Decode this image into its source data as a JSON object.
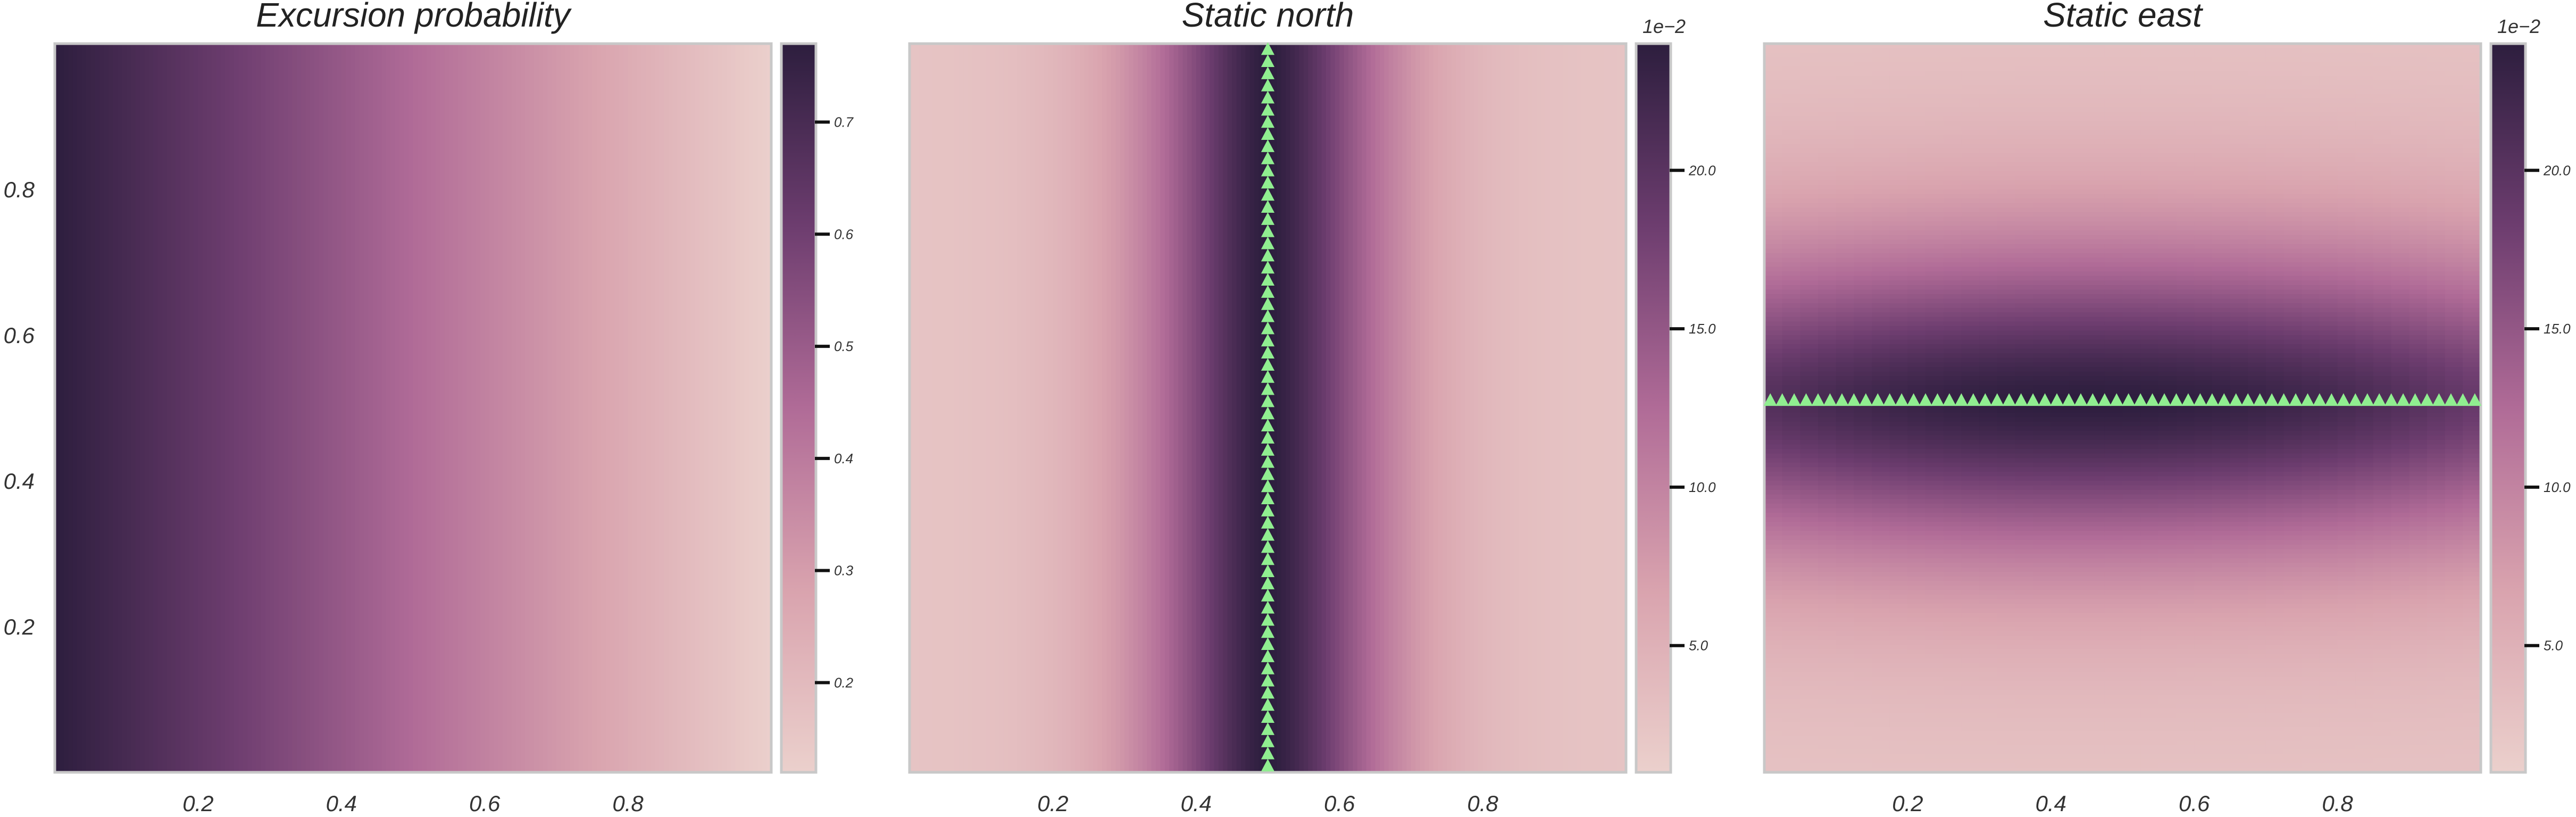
{
  "chart_data": [
    {
      "type": "heatmap",
      "title": "Excursion probability",
      "xlabel": "",
      "ylabel": "",
      "xlim": [
        0,
        1
      ],
      "ylim": [
        0,
        1
      ],
      "xticks": [
        "0.2",
        "0.4",
        "0.6",
        "0.8"
      ],
      "yticks": [
        "0.2",
        "0.4",
        "0.6",
        "0.8"
      ],
      "colorbar": {
        "range": [
          0.12,
          0.77
        ],
        "ticks": [
          "0.2",
          "0.3",
          "0.4",
          "0.5",
          "0.6",
          "0.7"
        ],
        "scale_label": ""
      },
      "field": {
        "kind": "linear_x",
        "value_at_x0": 0.77,
        "value_at_x1": 0.12
      },
      "markers": []
    },
    {
      "type": "heatmap",
      "title": "Static north",
      "xlabel": "",
      "ylabel": "",
      "xlim": [
        0,
        1
      ],
      "ylim": [
        0,
        1
      ],
      "xticks": [
        "0.2",
        "0.4",
        "0.6",
        "0.8"
      ],
      "yticks": [],
      "colorbar": {
        "range": [
          1.0,
          24.0
        ],
        "ticks": [
          "5.0",
          "10.0",
          "15.0",
          "20.0"
        ],
        "scale_label": "1e−2"
      },
      "field": {
        "kind": "vertical_band",
        "center_x": 0.5,
        "peak": 24.0,
        "edge": 2.5
      },
      "markers": {
        "shape": "triangle",
        "color": "#90ee90",
        "line": "vertical",
        "x": 0.5,
        "count": 60
      }
    },
    {
      "type": "heatmap",
      "title": "Static east",
      "xlabel": "",
      "ylabel": "",
      "xlim": [
        0,
        1
      ],
      "ylim": [
        0,
        1
      ],
      "xticks": [
        "0.2",
        "0.4",
        "0.6",
        "0.8"
      ],
      "yticks": [],
      "colorbar": {
        "range": [
          1.0,
          24.0
        ],
        "ticks": [
          "5.0",
          "10.0",
          "15.0",
          "20.0"
        ],
        "scale_label": "1e−2"
      },
      "field": {
        "kind": "horizontal_band",
        "center_y": 0.51,
        "peak": 24.0,
        "edge": 2.5
      },
      "markers": {
        "shape": "triangle",
        "color": "#90ee90",
        "line": "horizontal",
        "y": 0.51,
        "count": 60
      }
    }
  ],
  "colors": {
    "cmap_low": "#ebd0cc",
    "cmap_mid": "#b06b97",
    "cmap_high": "#2d1e3e",
    "frame": "#c8c8c8",
    "marker": "#90ee90"
  }
}
